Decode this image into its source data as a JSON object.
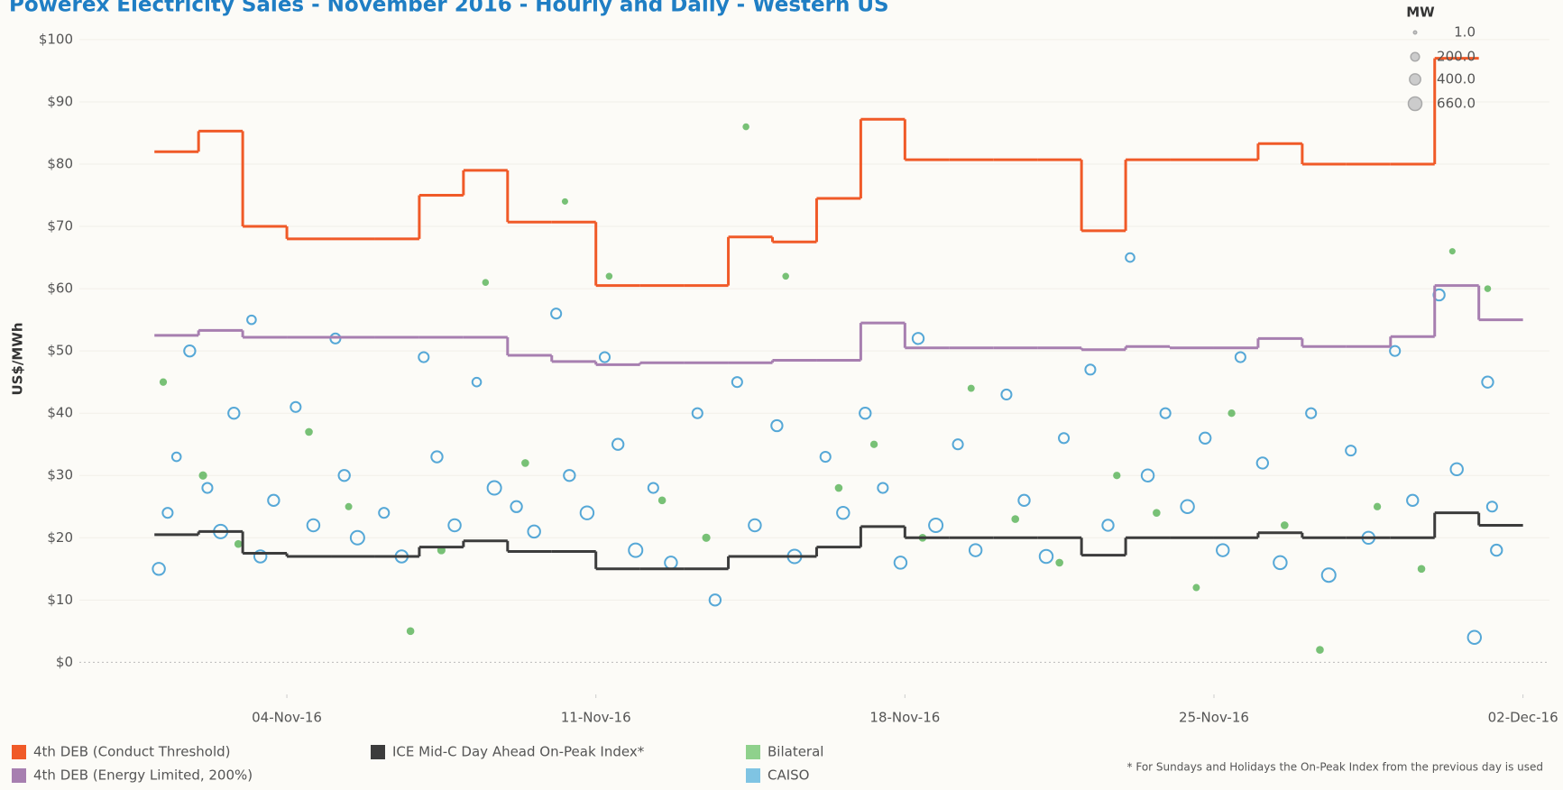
{
  "chart_data": {
    "type": "scatter",
    "title": "Powerex Electricity Sales - November 2016 - Hourly and Daily - Western US",
    "ylabel": "US$/MWh",
    "note": "* For Sundays and Holidays the On-Peak Index from the previous day is used",
    "xlim": [
      -0.7,
      32.6
    ],
    "xticks": [
      {
        "value": 4,
        "label": "04-Nov-16"
      },
      {
        "value": 11,
        "label": "11-Nov-16"
      },
      {
        "value": 18,
        "label": "18-Nov-16"
      },
      {
        "value": 25,
        "label": "25-Nov-16"
      },
      {
        "value": 32,
        "label": "02-Dec-16"
      }
    ],
    "ylim": [
      -4,
      101
    ],
    "yticks": [
      {
        "value": 0,
        "label": "$0"
      },
      {
        "value": 10,
        "label": "$10"
      },
      {
        "value": 20,
        "label": "$20"
      },
      {
        "value": 30,
        "label": "$30"
      },
      {
        "value": 40,
        "label": "$40"
      },
      {
        "value": 50,
        "label": "$50"
      },
      {
        "value": 60,
        "label": "$60"
      },
      {
        "value": 70,
        "label": "$70"
      },
      {
        "value": 80,
        "label": "$80"
      },
      {
        "value": 90,
        "label": "$90"
      },
      {
        "value": 100,
        "label": "$100"
      }
    ],
    "size_legend": {
      "title": "MW",
      "sizes": [
        {
          "value": 1,
          "label": "1.0"
        },
        {
          "value": 200,
          "label": "200.0"
        },
        {
          "value": 400,
          "label": "400.0"
        },
        {
          "value": 660,
          "label": "660.0"
        }
      ]
    },
    "x": [
      1,
      2,
      3,
      4,
      5,
      6,
      7,
      8,
      9,
      10,
      11,
      12,
      13,
      14,
      15,
      16,
      17,
      18,
      19,
      20,
      21,
      22,
      23,
      24,
      25,
      26,
      27,
      28,
      29,
      30,
      31
    ],
    "series": [
      {
        "name": "4th DEB (Conduct Threshold)",
        "type": "step",
        "color": "#f05a28",
        "values": [
          82,
          85.3,
          70,
          68,
          68,
          68,
          75,
          79,
          70.7,
          70.7,
          60.5,
          60.5,
          60.5,
          68.3,
          67.5,
          74.5,
          87.2,
          80.7,
          80.7,
          80.7,
          80.7,
          69.3,
          80.7,
          80.7,
          80.7,
          83.3,
          80,
          80,
          80,
          97,
          null
        ]
      },
      {
        "name": "4th DEB (Energy Limited, 200%)",
        "type": "step",
        "color": "#a77fb0",
        "values": [
          52.5,
          53.3,
          52.2,
          52.2,
          52.2,
          52.2,
          52.2,
          52.2,
          49.3,
          48.3,
          47.8,
          48.1,
          48.1,
          48.1,
          48.5,
          48.5,
          54.5,
          50.5,
          50.5,
          50.5,
          50.5,
          50.2,
          50.7,
          50.5,
          50.5,
          52,
          50.7,
          50.7,
          52.3,
          60.5,
          55
        ]
      },
      {
        "name": "ICE Mid-C Day Ahead On-Peak Index*",
        "type": "step",
        "color": "#3c3c3c",
        "values": [
          20.5,
          21,
          17.5,
          17,
          17,
          17,
          18.5,
          19.5,
          17.8,
          17.8,
          15,
          15,
          15,
          17,
          17,
          18.5,
          21.8,
          20,
          20,
          20,
          20,
          17.2,
          20,
          20,
          20,
          20.8,
          20,
          20,
          20,
          24,
          22
        ]
      },
      {
        "name": "Bilateral",
        "type": "scatter",
        "color": "#8fd18c",
        "mark_color": "#4cae4c",
        "x": [
          1.2,
          2.1,
          2.9,
          4.5,
          5.4,
          6.8,
          7.5,
          8.5,
          9.4,
          10.3,
          11.3,
          12.5,
          13.5,
          14.4,
          15.3,
          16.5,
          17.3,
          18.4,
          19.5,
          20.5,
          21.5,
          22.8,
          23.7,
          24.6,
          25.4,
          26.6,
          27.4,
          28.7,
          29.7,
          30.4,
          31.2
        ],
        "values": [
          45,
          30,
          19,
          37,
          25,
          5,
          18,
          61,
          32,
          74,
          62,
          26,
          20,
          86,
          62,
          28,
          35,
          20,
          44,
          23,
          16,
          30,
          24,
          12,
          40,
          22,
          2,
          25,
          15,
          66,
          60
        ],
        "sizes": [
          50,
          80,
          60,
          60,
          40,
          60,
          80,
          30,
          60,
          20,
          30,
          60,
          80,
          30,
          30,
          60,
          50,
          60,
          40,
          60,
          60,
          50,
          60,
          40,
          50,
          60,
          60,
          50,
          60,
          20,
          30
        ]
      },
      {
        "name": "CAISO",
        "type": "scatter",
        "color": "#7fc4e3",
        "mark_color": "#1f8ccc",
        "x": [
          1.1,
          1.3,
          1.5,
          1.8,
          2.2,
          2.5,
          2.8,
          3.2,
          3.4,
          3.7,
          4.2,
          4.6,
          5.1,
          5.3,
          5.6,
          6.2,
          6.6,
          7.1,
          7.4,
          7.8,
          8.3,
          8.7,
          9.2,
          9.6,
          10.1,
          10.4,
          10.8,
          11.2,
          11.5,
          11.9,
          12.3,
          12.7,
          13.3,
          13.7,
          14.2,
          14.6,
          15.1,
          15.5,
          16.2,
          16.6,
          17.1,
          17.5,
          17.9,
          18.3,
          18.7,
          19.2,
          19.6,
          20.3,
          20.7,
          21.2,
          21.6,
          22.2,
          22.6,
          23.1,
          23.5,
          23.9,
          24.4,
          24.8,
          25.2,
          25.6,
          26.1,
          26.5,
          27.2,
          27.6,
          28.1,
          28.5,
          29.1,
          29.5,
          30.1,
          30.5,
          30.9,
          31.2,
          31.3,
          31.4
        ],
        "values": [
          15,
          24,
          33,
          50,
          28,
          21,
          40,
          55,
          17,
          26,
          41,
          22,
          52,
          30,
          20,
          24,
          17,
          49,
          33,
          22,
          45,
          28,
          25,
          21,
          56,
          30,
          24,
          49,
          35,
          18,
          28,
          16,
          40,
          10,
          45,
          22,
          38,
          17,
          33,
          24,
          40,
          28,
          16,
          52,
          22,
          35,
          18,
          43,
          26,
          17,
          36,
          47,
          22,
          65,
          30,
          40,
          25,
          36,
          18,
          49,
          32,
          16,
          40,
          14,
          34,
          20,
          50,
          26,
          59,
          31,
          4,
          45,
          25,
          18
        ],
        "sizes": [
          500,
          300,
          200,
          400,
          300,
          660,
          400,
          200,
          500,
          400,
          300,
          500,
          300,
          400,
          660,
          300,
          500,
          300,
          400,
          500,
          200,
          660,
          400,
          500,
          300,
          400,
          600,
          300,
          400,
          660,
          300,
          500,
          300,
          400,
          300,
          500,
          400,
          660,
          300,
          500,
          400,
          300,
          500,
          400,
          660,
          300,
          500,
          300,
          400,
          600,
          300,
          300,
          400,
          200,
          500,
          300,
          600,
          400,
          500,
          300,
          400,
          600,
          300,
          660,
          300,
          500,
          300,
          400,
          400,
          500,
          600,
          400,
          300,
          400
        ]
      }
    ]
  }
}
